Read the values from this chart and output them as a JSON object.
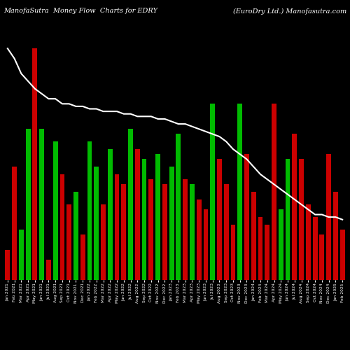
{
  "title_left": "ManofaSutra  Money Flow  Charts for EDRY",
  "title_right": "(EuroDry Ltd.) Manofasutra.com",
  "background_color": "#000000",
  "bar_colors": [
    "red",
    "red",
    "green",
    "green",
    "red",
    "green",
    "red",
    "green",
    "red",
    "red",
    "green",
    "red",
    "green",
    "green",
    "red",
    "green",
    "red",
    "red",
    "green",
    "red",
    "green",
    "red",
    "green",
    "red",
    "green",
    "green",
    "red",
    "green",
    "red",
    "red",
    "green",
    "red",
    "red",
    "red",
    "green",
    "red",
    "red",
    "red",
    "red",
    "red",
    "green",
    "green",
    "red",
    "red",
    "red",
    "red",
    "red",
    "red",
    "red",
    "red"
  ],
  "bar_values": [
    0.12,
    0.45,
    0.2,
    0.6,
    0.92,
    0.6,
    0.08,
    0.55,
    0.42,
    0.3,
    0.35,
    0.18,
    0.55,
    0.45,
    0.3,
    0.52,
    0.42,
    0.38,
    0.6,
    0.52,
    0.48,
    0.4,
    0.5,
    0.38,
    0.45,
    0.58,
    0.4,
    0.38,
    0.32,
    0.28,
    0.7,
    0.48,
    0.38,
    0.22,
    0.7,
    0.5,
    0.35,
    0.25,
    0.22,
    0.7,
    0.28,
    0.48,
    0.58,
    0.48,
    0.3,
    0.25,
    0.18,
    0.5,
    0.35,
    0.2
  ],
  "line_values": [
    0.92,
    0.88,
    0.82,
    0.79,
    0.76,
    0.74,
    0.72,
    0.72,
    0.7,
    0.7,
    0.69,
    0.69,
    0.68,
    0.68,
    0.67,
    0.67,
    0.67,
    0.66,
    0.66,
    0.65,
    0.65,
    0.65,
    0.64,
    0.64,
    0.63,
    0.62,
    0.62,
    0.61,
    0.6,
    0.59,
    0.58,
    0.57,
    0.55,
    0.52,
    0.5,
    0.48,
    0.45,
    0.42,
    0.4,
    0.38,
    0.36,
    0.34,
    0.32,
    0.3,
    0.28,
    0.26,
    0.26,
    0.25,
    0.25,
    0.24
  ],
  "dates": [
    "Jan 2021",
    "Feb 2021",
    "Mar 2021",
    "Apr 2021",
    "May 2021",
    "Jun 2021",
    "Jul 2021",
    "Aug 2021",
    "Sep 2021",
    "Oct 2021",
    "Nov 2021",
    "Dec 2021",
    "Jan 2022",
    "Feb 2022",
    "Mar 2022",
    "Apr 2022",
    "May 2022",
    "Jun 2022",
    "Jul 2022",
    "Aug 2022",
    "Sep 2022",
    "Oct 2022",
    "Nov 2022",
    "Dec 2022",
    "Jan 2023",
    "Feb 2023",
    "Mar 2023",
    "Apr 2023",
    "May 2023",
    "Jun 2023",
    "Jul 2023",
    "Aug 2023",
    "Sep 2023",
    "Oct 2023",
    "Nov 2023",
    "Dec 2023",
    "Jan 2024",
    "Feb 2024",
    "Mar 2024",
    "Apr 2024",
    "May 2024",
    "Jun 2024",
    "Jul 2024",
    "Aug 2024",
    "Sep 2024",
    "Oct 2024",
    "Nov 2024",
    "Dec 2024",
    "Jan 2025",
    "Feb 2025"
  ],
  "line_color": "#ffffff",
  "green_color": "#00bb00",
  "red_color": "#cc0000",
  "title_fontsize": 7.0,
  "tick_fontsize": 4.2,
  "figsize": [
    5.0,
    5.0
  ],
  "dpi": 100
}
